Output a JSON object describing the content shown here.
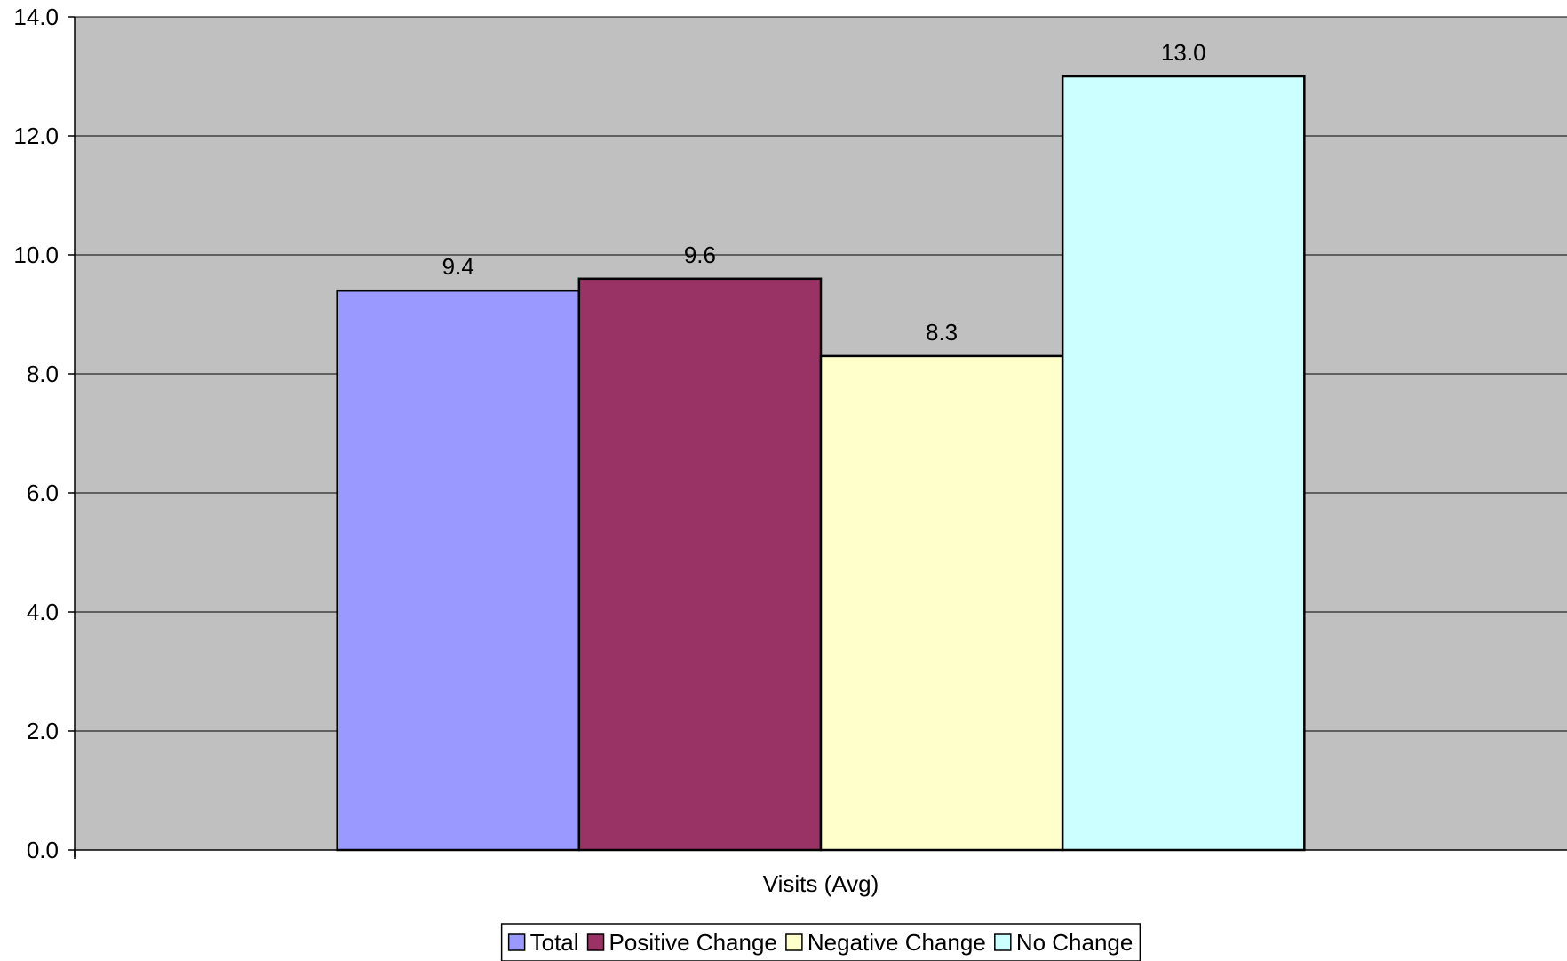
{
  "chart_data": {
    "type": "bar",
    "categories": [
      "Visits (Avg)"
    ],
    "series": [
      {
        "name": "Total",
        "values": [
          9.4
        ],
        "color": "#9999ff"
      },
      {
        "name": "Positive Change",
        "values": [
          9.6
        ],
        "color": "#993366"
      },
      {
        "name": "Negative Change",
        "values": [
          8.3
        ],
        "color": "#ffffcc"
      },
      {
        "name": "No Change",
        "values": [
          13.0
        ],
        "color": "#ccffff"
      }
    ],
    "data_labels": [
      "9.4",
      "9.6",
      "8.3",
      "13.0"
    ],
    "ylim": [
      0,
      14
    ],
    "yticks": [
      "0.0",
      "2.0",
      "4.0",
      "6.0",
      "8.0",
      "10.0",
      "12.0",
      "14.0"
    ],
    "ytick_values": [
      0,
      2,
      4,
      6,
      8,
      10,
      12,
      14
    ],
    "xlabel": "Visits (Avg)",
    "ylabel": "",
    "title": "",
    "grid": true,
    "legend": "bottom-center",
    "plot_background": "#c0c0c0"
  }
}
